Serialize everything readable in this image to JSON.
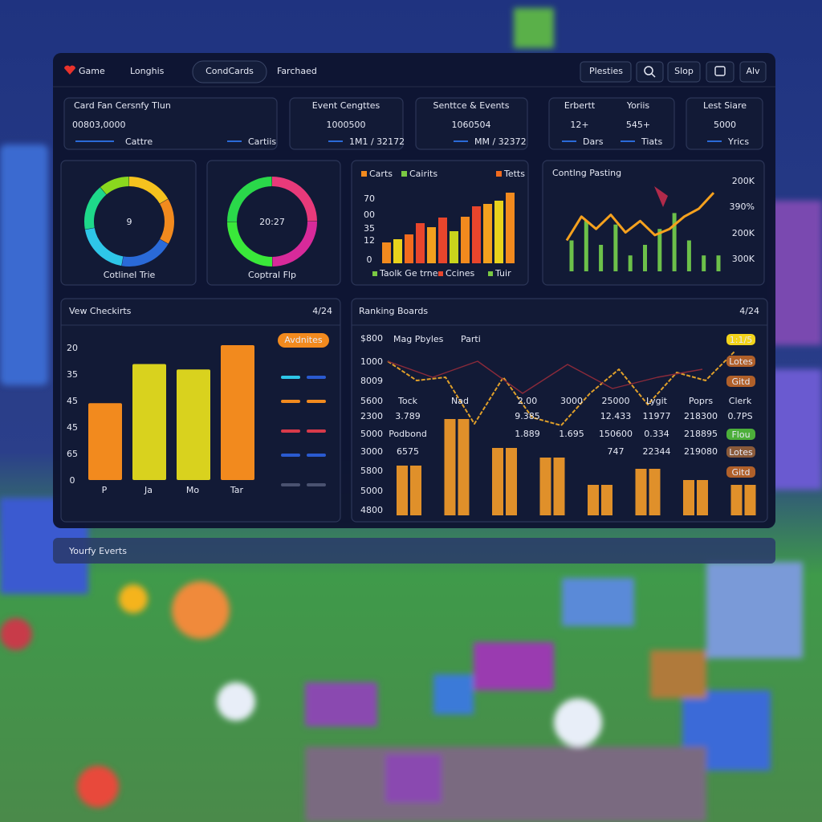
{
  "nav": {
    "brand": "Game",
    "items": [
      "Longhis",
      "CondCards",
      "Farchaed"
    ],
    "actions": [
      "Plesties",
      "Slop",
      "Alv"
    ]
  },
  "stats": [
    {
      "label": "Card Fan Cersnfy Tlun",
      "value": "00803,0000",
      "sub": [
        "Cattre",
        "Cartiis"
      ]
    },
    {
      "label": "Event Cengttes",
      "value": "1000500",
      "sub": [
        "1M1 / 32172"
      ]
    },
    {
      "label": "Senttce & Events",
      "value": "1060504",
      "sub": [
        "MM / 32372"
      ]
    },
    {
      "label": "Erbertt",
      "value": "12+",
      "sub": [
        "Dars"
      ]
    },
    {
      "label": "Yoriis",
      "value": "545+",
      "sub": [
        "Tiats"
      ]
    },
    {
      "label": "Lest Siare",
      "value": "5000",
      "sub": [
        "Yrics"
      ]
    }
  ],
  "gauges": [
    {
      "value": "9",
      "label": "Cotlinel Trie"
    },
    {
      "value": "20:27",
      "label": "Coptral Flp"
    }
  ],
  "bar_panel": {
    "legend": [
      {
        "name": "Carts",
        "color": "#f28a1e"
      },
      {
        "name": "Cairits",
        "color": "#7ac943"
      },
      {
        "name": "Tetts",
        "color": "#f26b1e"
      }
    ],
    "axis_labels": [
      "70",
      "00",
      "35",
      "12",
      "0"
    ],
    "ylim": [
      0,
      100
    ],
    "values": [
      26,
      30,
      36,
      50,
      45,
      57,
      40,
      58,
      71,
      74,
      78,
      88
    ],
    "colors": [
      "#f28a1e",
      "#e8d21c",
      "#f26b1e",
      "#e8452c",
      "#f2a01e",
      "#e8452c",
      "#c9d41c",
      "#f28a1e",
      "#e8452c",
      "#f2a01e",
      "#e8d21c",
      "#f28a1e"
    ],
    "footer_legend": [
      {
        "name": "Taolk Ge trne",
        "color": "#7ac943"
      },
      {
        "name": "Ccines",
        "color": "#e8452c"
      },
      {
        "name": "Tuir",
        "color": "#7ac943"
      }
    ]
  },
  "line_panel": {
    "title": "Contlng Pasting",
    "axis_labels": [
      "200K",
      "390%",
      "200K",
      "300K"
    ],
    "ylim": [
      0,
      100
    ],
    "bars": {
      "color": "#6cc04a",
      "values": [
        35,
        57,
        30,
        53,
        18,
        30,
        48,
        66,
        35,
        18,
        18
      ]
    },
    "line": {
      "color": "#f5a11e",
      "values": [
        35,
        62,
        48,
        64,
        44,
        57,
        41,
        48,
        62,
        71,
        89
      ]
    }
  },
  "checklist_panel": {
    "title": "Vew Checkirts",
    "date": "4/24",
    "button": "Avdnites",
    "axis_labels": [
      "20",
      "35",
      "45",
      "45",
      "65",
      "0"
    ],
    "ylim": [
      0,
      100
    ],
    "categories": [
      "P",
      "Ja",
      "Mo",
      "Tar"
    ],
    "values": [
      57,
      86,
      82,
      100
    ],
    "colors": [
      "#f28a1e",
      "#d9d21e",
      "#d9d21e",
      "#f28a1e"
    ]
  },
  "ranking": {
    "title": "Ranking Boards",
    "date": "4/24",
    "legend": [
      {
        "name": "Mag Pbyles",
        "color": "#c9cfe0"
      },
      {
        "name": "Parti",
        "color": "#e8452c"
      }
    ],
    "axis_labels": [
      "$800",
      "1000",
      "8009",
      "5600",
      "2300",
      "5000",
      "3000",
      "5800",
      "5000",
      "4800"
    ],
    "header": [
      "Tock",
      "Nad",
      "2.00",
      "3000",
      "25000",
      "Lygit",
      "Poprs",
      "Clerk"
    ],
    "rows": [
      [
        "3.789",
        null,
        "9.385",
        null,
        "12.433",
        "11977",
        "218300",
        "0.7PS"
      ],
      [
        "Podbond",
        null,
        "1.889",
        "1.695",
        "150600",
        "0.334",
        "218895",
        null
      ],
      [
        "6575",
        null,
        null,
        null,
        "747",
        "22344",
        "219080",
        null
      ]
    ],
    "pills": [
      {
        "text": "1:1/5",
        "color": "#f2d31b"
      },
      {
        "text": "Lotes",
        "color": "#b0602a"
      },
      {
        "text": "Gitd",
        "color": "#b0602a"
      },
      {
        "text": "Flou",
        "color": "#4caf3a"
      },
      {
        "text": "Lotes",
        "color": "#8a5a3a"
      },
      {
        "text": "Gitd",
        "color": "#b0602a"
      }
    ],
    "ylim": [
      0,
      110
    ],
    "bars": {
      "color": "#e0902a",
      "values": [
        31,
        31,
        60,
        60,
        42,
        42,
        36,
        36,
        19,
        19,
        29,
        29,
        22,
        22,
        19,
        19
      ]
    },
    "lines": [
      {
        "color": "#e0a02a",
        "values": [
          96,
          84,
          86,
          57,
          86,
          61,
          56,
          76,
          91,
          69,
          89,
          84,
          102
        ]
      },
      {
        "color": "#8a2a3a",
        "values": [
          96,
          86,
          96,
          76,
          94,
          79,
          86,
          91
        ]
      }
    ]
  },
  "footer": {
    "title": "Yourfy Everts"
  }
}
